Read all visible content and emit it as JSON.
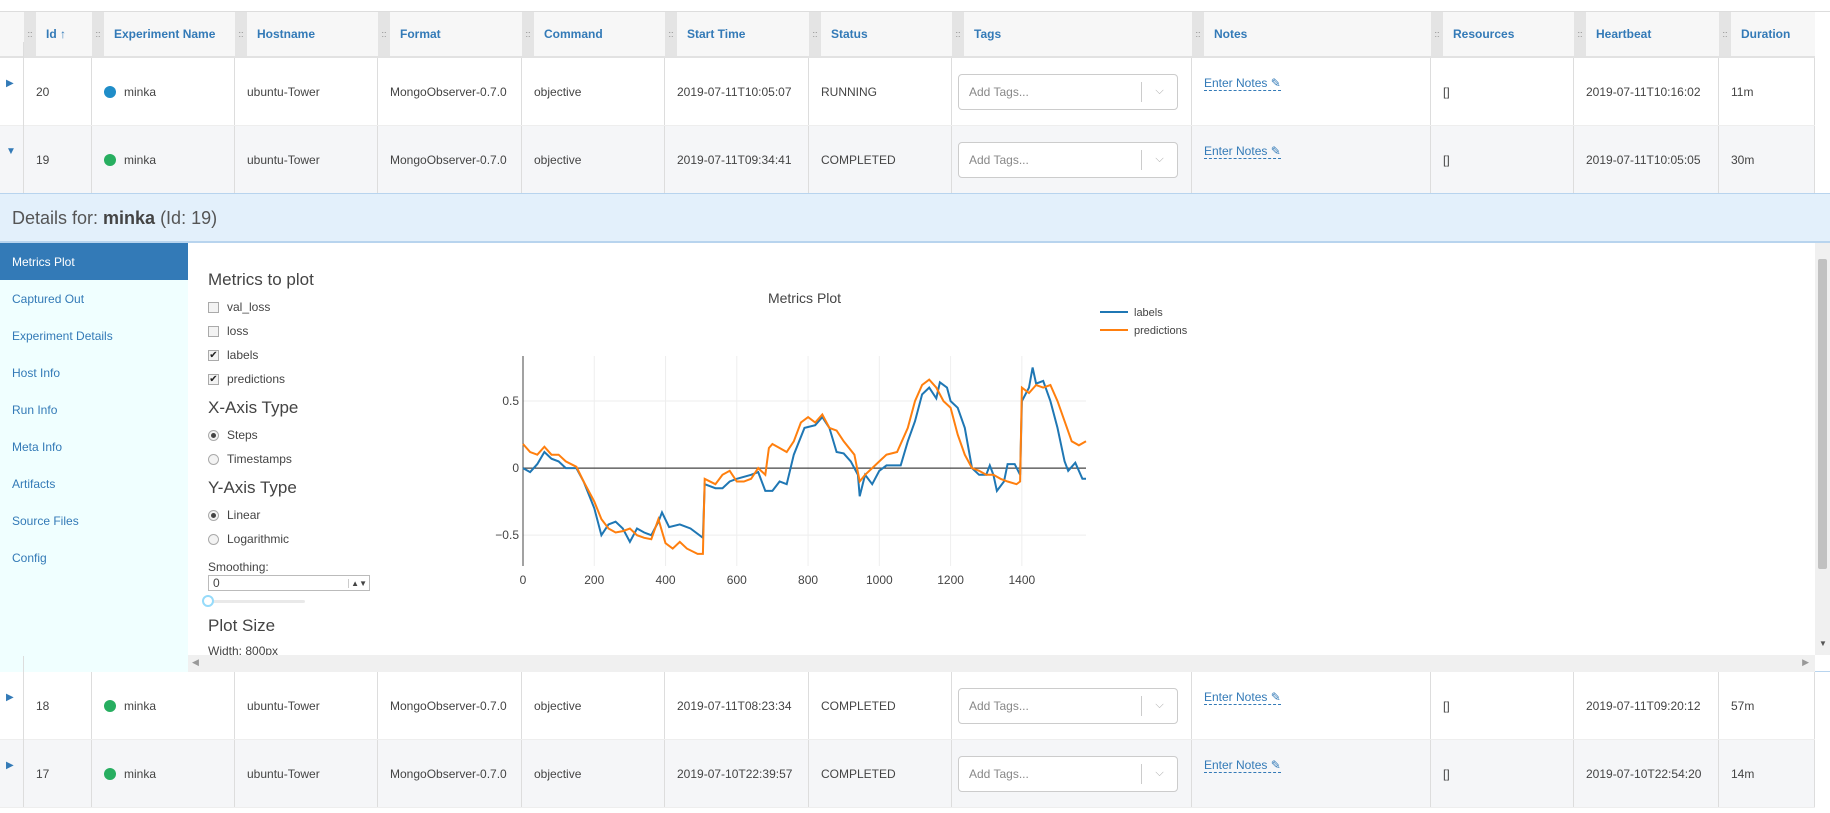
{
  "columns": [
    "",
    "Id ↑",
    "Experiment Name",
    "Hostname",
    "Format",
    "Command",
    "Start Time",
    "Status",
    "Tags",
    "Notes",
    "Resources",
    "Heartbeat",
    "Duration"
  ],
  "rows_top": [
    {
      "expand": "▶",
      "id": "20",
      "name": "minka",
      "dot": "#1f8dc8",
      "host": "ubuntu-Tower",
      "format": "MongoObserver-0.7.0",
      "command": "objective",
      "start": "2019-07-11T10:05:07",
      "status": "RUNNING",
      "tags": "Add Tags...",
      "notes": "Enter Notes",
      "resources": "[]",
      "heartbeat": "2019-07-11T10:16:02",
      "duration": "11m"
    },
    {
      "expand": "▼",
      "id": "19",
      "name": "minka",
      "dot": "#27ae60",
      "host": "ubuntu-Tower",
      "format": "MongoObserver-0.7.0",
      "command": "objective",
      "start": "2019-07-11T09:34:41",
      "status": "COMPLETED",
      "tags": "Add Tags...",
      "notes": "Enter Notes",
      "resources": "[]",
      "heartbeat": "2019-07-11T10:05:05",
      "duration": "30m"
    }
  ],
  "rows_bottom": [
    {
      "expand": "▶",
      "id": "18",
      "name": "minka",
      "dot": "#27ae60",
      "host": "ubuntu-Tower",
      "format": "MongoObserver-0.7.0",
      "command": "objective",
      "start": "2019-07-11T08:23:34",
      "status": "COMPLETED",
      "tags": "Add Tags...",
      "notes": "Enter Notes",
      "resources": "[]",
      "heartbeat": "2019-07-11T09:20:12",
      "duration": "57m"
    },
    {
      "expand": "▶",
      "id": "17",
      "name": "minka",
      "dot": "#27ae60",
      "host": "ubuntu-Tower",
      "format": "MongoObserver-0.7.0",
      "command": "objective",
      "start": "2019-07-10T22:39:57",
      "status": "COMPLETED",
      "tags": "Add Tags...",
      "notes": "Enter Notes",
      "resources": "[]",
      "heartbeat": "2019-07-10T22:54:20",
      "duration": "14m"
    }
  ],
  "details": {
    "prefix": "Details for: ",
    "name": "minka",
    "suffix": " (Id: 19)"
  },
  "sidebar": [
    "Metrics Plot",
    "Captured Out",
    "Experiment Details",
    "Host Info",
    "Run Info",
    "Meta Info",
    "Artifacts",
    "Source Files",
    "Config"
  ],
  "controls": {
    "metrics_title": "Metrics to plot",
    "metrics": [
      {
        "label": "val_loss",
        "checked": false
      },
      {
        "label": "loss",
        "checked": false
      },
      {
        "label": "labels",
        "checked": true
      },
      {
        "label": "predictions",
        "checked": true
      }
    ],
    "xaxis_title": "X-Axis Type",
    "xaxis": [
      {
        "label": "Steps",
        "on": true
      },
      {
        "label": "Timestamps",
        "on": false
      }
    ],
    "yaxis_title": "Y-Axis Type",
    "yaxis": [
      {
        "label": "Linear",
        "on": true
      },
      {
        "label": "Logarithmic",
        "on": false
      }
    ],
    "smoothing_label": "Smoothing:",
    "smoothing_value": "0",
    "plotsize_title": "Plot Size",
    "width_label": "Width: 800px"
  },
  "chart_data": {
    "type": "line",
    "title": "Metrics Plot",
    "xlim": [
      0,
      1580
    ],
    "ylim": [
      -0.73,
      0.836
    ],
    "xticks": [
      0,
      200,
      400,
      600,
      800,
      1000,
      1200,
      1400
    ],
    "yticks": [
      -0.5,
      0,
      0.5
    ],
    "ytick_labels": [
      "−0.5",
      "0",
      "0.5"
    ],
    "grid": true,
    "legend": "top-right",
    "series": [
      {
        "name": "labels",
        "color": "#1f77b4",
        "points": [
          [
            0,
            0
          ],
          [
            20,
            -0.03
          ],
          [
            40,
            0.03
          ],
          [
            60,
            0.12
          ],
          [
            80,
            0.07
          ],
          [
            100,
            0.05
          ],
          [
            120,
            0
          ],
          [
            150,
            0
          ],
          [
            170,
            -0.1
          ],
          [
            200,
            -0.3
          ],
          [
            220,
            -0.5
          ],
          [
            240,
            -0.42
          ],
          [
            260,
            -0.4
          ],
          [
            280,
            -0.45
          ],
          [
            300,
            -0.55
          ],
          [
            320,
            -0.45
          ],
          [
            340,
            -0.48
          ],
          [
            360,
            -0.5
          ],
          [
            380,
            -0.4
          ],
          [
            390,
            -0.33
          ],
          [
            410,
            -0.44
          ],
          [
            440,
            -0.42
          ],
          [
            470,
            -0.45
          ],
          [
            505,
            -0.52
          ],
          [
            510,
            -0.12
          ],
          [
            540,
            -0.15
          ],
          [
            560,
            -0.15
          ],
          [
            580,
            -0.1
          ],
          [
            600,
            -0.08
          ],
          [
            640,
            -0.05
          ],
          [
            660,
            -0.03
          ],
          [
            680,
            -0.17
          ],
          [
            700,
            -0.17
          ],
          [
            720,
            -0.1
          ],
          [
            740,
            -0.12
          ],
          [
            760,
            0.1
          ],
          [
            790,
            0.3
          ],
          [
            820,
            0.32
          ],
          [
            840,
            0.38
          ],
          [
            860,
            0.3
          ],
          [
            880,
            0.12
          ],
          [
            900,
            0.11
          ],
          [
            920,
            0.05
          ],
          [
            940,
            -0.05
          ],
          [
            945,
            -0.21
          ],
          [
            960,
            -0.05
          ],
          [
            980,
            -0.12
          ],
          [
            1000,
            -0.02
          ],
          [
            1020,
            0.02
          ],
          [
            1060,
            0.02
          ],
          [
            1080,
            0.2
          ],
          [
            1100,
            0.35
          ],
          [
            1120,
            0.55
          ],
          [
            1140,
            0.6
          ],
          [
            1160,
            0.52
          ],
          [
            1170,
            0.64
          ],
          [
            1190,
            0.6
          ],
          [
            1200,
            0.5
          ],
          [
            1220,
            0.45
          ],
          [
            1240,
            0.3
          ],
          [
            1260,
            0
          ],
          [
            1280,
            -0.05
          ],
          [
            1300,
            -0.05
          ],
          [
            1310,
            0.02
          ],
          [
            1320,
            -0.05
          ],
          [
            1330,
            -0.17
          ],
          [
            1350,
            -0.1
          ],
          [
            1360,
            0.03
          ],
          [
            1380,
            0.03
          ],
          [
            1395,
            -0.05
          ],
          [
            1400,
            0.5
          ],
          [
            1420,
            0.6
          ],
          [
            1430,
            0.75
          ],
          [
            1440,
            0.63
          ],
          [
            1460,
            0.65
          ],
          [
            1480,
            0.5
          ],
          [
            1500,
            0.3
          ],
          [
            1520,
            0.05
          ],
          [
            1530,
            -0.02
          ],
          [
            1550,
            0.04
          ],
          [
            1570,
            -0.08
          ],
          [
            1580,
            -0.08
          ]
        ]
      },
      {
        "name": "predictions",
        "color": "#ff7f0e",
        "points": [
          [
            0,
            0.18
          ],
          [
            20,
            0.12
          ],
          [
            40,
            0.1
          ],
          [
            60,
            0.16
          ],
          [
            80,
            0.1
          ],
          [
            100,
            0.1
          ],
          [
            120,
            0.05
          ],
          [
            150,
            0.01
          ],
          [
            170,
            -0.1
          ],
          [
            200,
            -0.25
          ],
          [
            220,
            -0.38
          ],
          [
            240,
            -0.45
          ],
          [
            260,
            -0.48
          ],
          [
            280,
            -0.47
          ],
          [
            300,
            -0.45
          ],
          [
            320,
            -0.5
          ],
          [
            340,
            -0.52
          ],
          [
            360,
            -0.53
          ],
          [
            380,
            -0.38
          ],
          [
            400,
            -0.56
          ],
          [
            420,
            -0.6
          ],
          [
            440,
            -0.55
          ],
          [
            460,
            -0.6
          ],
          [
            490,
            -0.64
          ],
          [
            505,
            -0.64
          ],
          [
            510,
            -0.08
          ],
          [
            540,
            -0.12
          ],
          [
            560,
            -0.05
          ],
          [
            580,
            -0.02
          ],
          [
            600,
            -0.1
          ],
          [
            620,
            -0.1
          ],
          [
            640,
            -0.08
          ],
          [
            660,
            0
          ],
          [
            680,
            -0.05
          ],
          [
            690,
            0.15
          ],
          [
            700,
            0.18
          ],
          [
            720,
            0.15
          ],
          [
            740,
            0.12
          ],
          [
            760,
            0.2
          ],
          [
            780,
            0.34
          ],
          [
            800,
            0.38
          ],
          [
            820,
            0.34
          ],
          [
            840,
            0.4
          ],
          [
            860,
            0.3
          ],
          [
            880,
            0.28
          ],
          [
            900,
            0.2
          ],
          [
            930,
            0.1
          ],
          [
            945,
            -0.1
          ],
          [
            960,
            -0.05
          ],
          [
            980,
            0
          ],
          [
            1000,
            0.05
          ],
          [
            1020,
            0.1
          ],
          [
            1050,
            0.12
          ],
          [
            1080,
            0.3
          ],
          [
            1100,
            0.5
          ],
          [
            1120,
            0.62
          ],
          [
            1140,
            0.66
          ],
          [
            1160,
            0.6
          ],
          [
            1180,
            0.5
          ],
          [
            1200,
            0.45
          ],
          [
            1220,
            0.25
          ],
          [
            1240,
            0.1
          ],
          [
            1260,
            0
          ],
          [
            1280,
            -0.02
          ],
          [
            1300,
            -0.05
          ],
          [
            1320,
            -0.05
          ],
          [
            1340,
            -0.08
          ],
          [
            1360,
            -0.1
          ],
          [
            1385,
            -0.12
          ],
          [
            1395,
            -0.1
          ],
          [
            1400,
            0.6
          ],
          [
            1420,
            0.56
          ],
          [
            1440,
            0.62
          ],
          [
            1460,
            0.6
          ],
          [
            1480,
            0.62
          ],
          [
            1500,
            0.5
          ],
          [
            1520,
            0.35
          ],
          [
            1540,
            0.2
          ],
          [
            1560,
            0.17
          ],
          [
            1580,
            0.2
          ]
        ]
      }
    ]
  }
}
